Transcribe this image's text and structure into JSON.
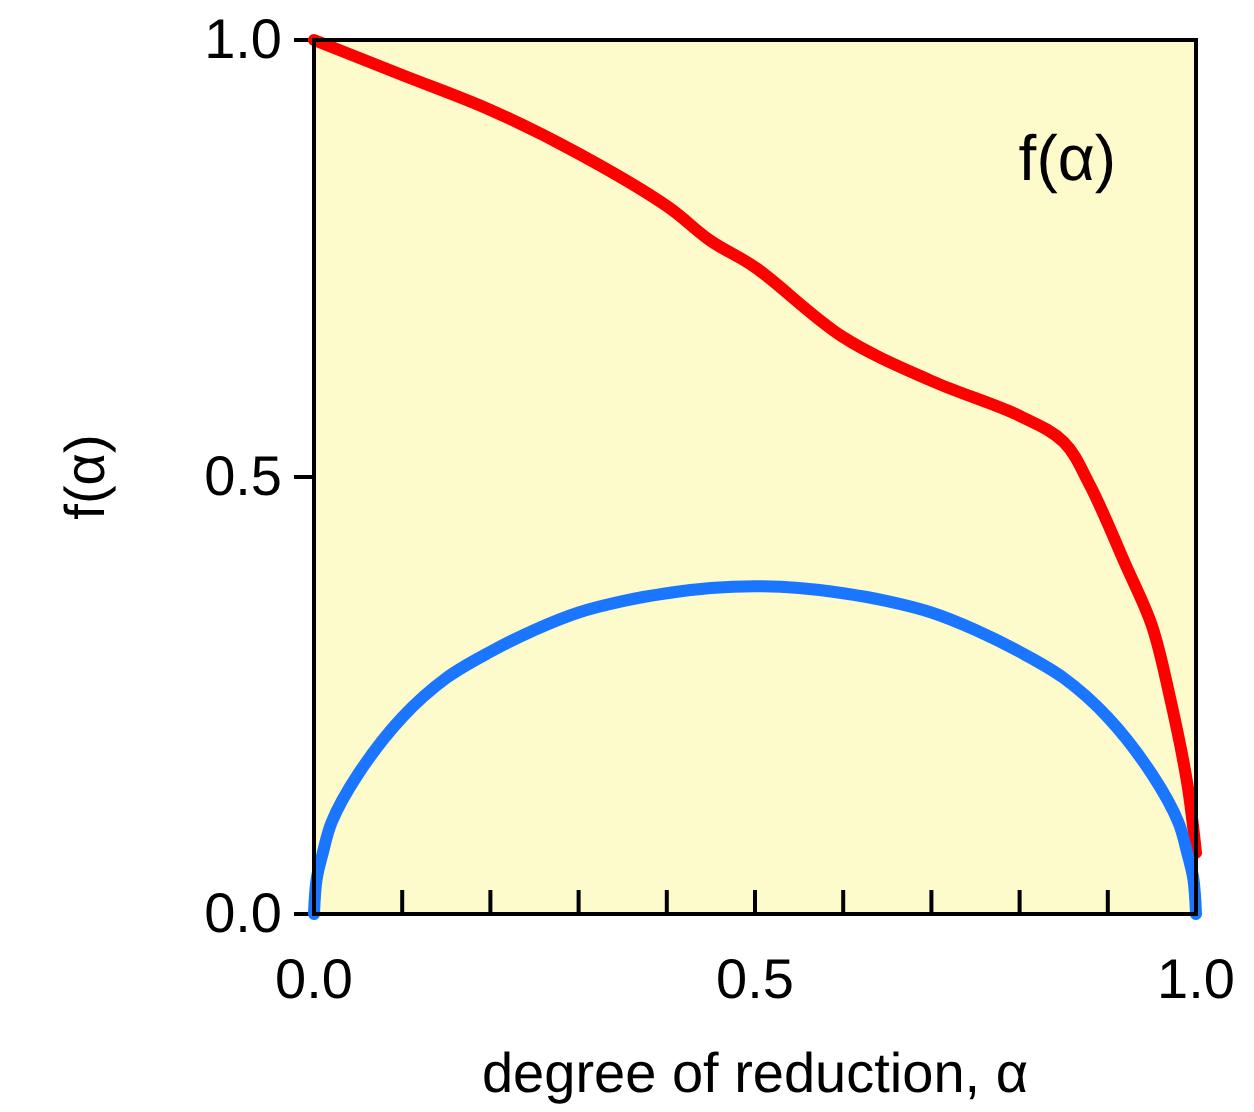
{
  "chart_data": {
    "type": "line",
    "xlabel": "degree of reduction, α",
    "ylabel": "f(α)",
    "xlim": [
      0,
      1
    ],
    "ylim": [
      0,
      1
    ],
    "xticks": [
      {
        "value": 0,
        "label": "0.0"
      },
      {
        "value": 0.1,
        "label": null
      },
      {
        "value": 0.2,
        "label": null
      },
      {
        "value": 0.3,
        "label": null
      },
      {
        "value": 0.4,
        "label": null
      },
      {
        "value": 0.5,
        "label": "0.5"
      },
      {
        "value": 0.6,
        "label": null
      },
      {
        "value": 0.7,
        "label": null
      },
      {
        "value": 0.8,
        "label": null
      },
      {
        "value": 0.9,
        "label": null
      },
      {
        "value": 1,
        "label": "1.0"
      }
    ],
    "yticks": [
      {
        "value": 0,
        "label": "0.0"
      },
      {
        "value": 0.5,
        "label": "0.5"
      },
      {
        "value": 1,
        "label": "1.0"
      }
    ],
    "annotations": [
      "f(α)"
    ],
    "series": [
      {
        "color": "#ff0000",
        "x": [
          0,
          0.1,
          0.2,
          0.3,
          0.4,
          0.45,
          0.5,
          0.6,
          0.7,
          0.8,
          0.85,
          0.88,
          0.92,
          0.95,
          0.97,
          0.99,
          1.0
        ],
        "values": [
          1.0,
          0.96,
          0.92,
          0.87,
          0.81,
          0.77,
          0.74,
          0.66,
          0.61,
          0.57,
          0.54,
          0.49,
          0.4,
          0.33,
          0.25,
          0.15,
          0.07
        ]
      },
      {
        "color": "#1a75ff",
        "x": [
          0,
          0.003,
          0.01,
          0.02,
          0.05,
          0.1,
          0.15,
          0.2,
          0.25,
          0.3,
          0.35,
          0.4,
          0.45,
          0.5,
          0.55,
          0.6,
          0.65,
          0.7,
          0.75,
          0.8,
          0.85,
          0.9,
          0.95,
          0.98,
          0.99,
          0.997,
          1.0
        ],
        "values": [
          0,
          0.04,
          0.07,
          0.105,
          0.16,
          0.225,
          0.27,
          0.3,
          0.325,
          0.345,
          0.358,
          0.367,
          0.373,
          0.375,
          0.373,
          0.367,
          0.358,
          0.345,
          0.325,
          0.3,
          0.27,
          0.225,
          0.16,
          0.105,
          0.07,
          0.04,
          0
        ]
      }
    ],
    "grid": false,
    "marker": "none",
    "line_style": "solid"
  }
}
